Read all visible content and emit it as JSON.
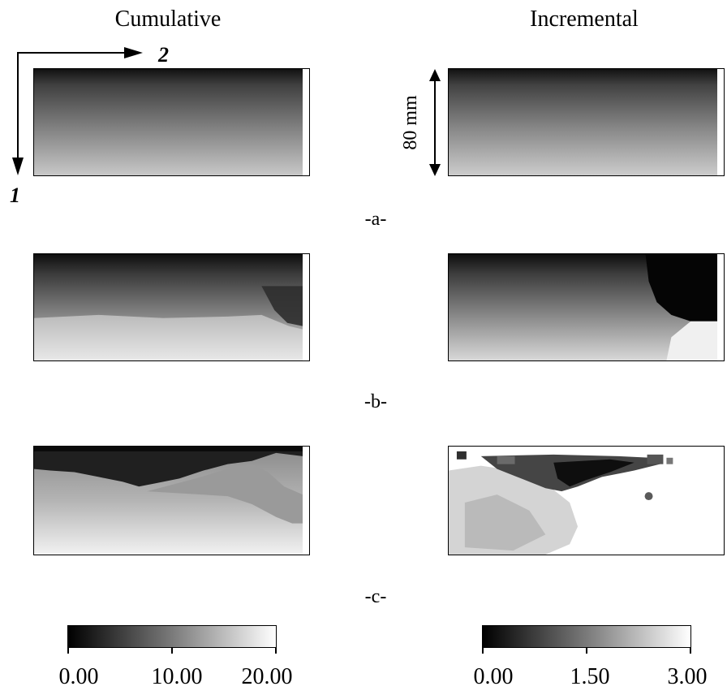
{
  "columns": {
    "left": "Cumulative",
    "right": "Incremental"
  },
  "axes": {
    "vertical": "1",
    "horizontal": "2"
  },
  "scale_label": "80 mm",
  "rows": [
    {
      "label": "-a-"
    },
    {
      "label": "-b-"
    },
    {
      "label": "-c-"
    }
  ],
  "colorbars": {
    "cumulative": {
      "min": "0.00",
      "mid": "10.00",
      "max": "20.00"
    },
    "incremental": {
      "min": "0.00",
      "mid": "1.50",
      "max": "3.00"
    }
  }
}
